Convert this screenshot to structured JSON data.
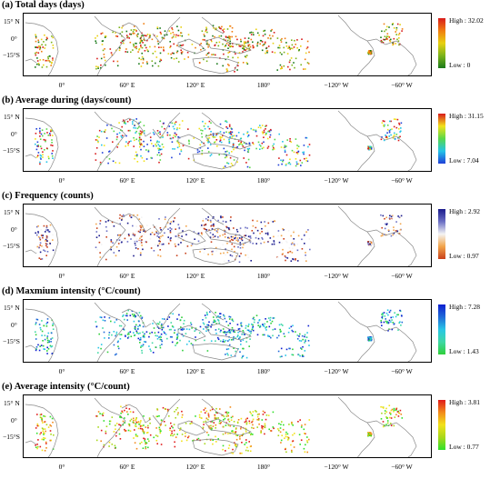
{
  "lat_ticks": [
    "15° N",
    "0°",
    "−15°S"
  ],
  "lon_ticks": [
    "0°",
    "60° E",
    "120° E",
    "180°",
    "−120° W",
    "−60° W"
  ],
  "panels": [
    {
      "title": "(a) Total days (days)",
      "high": "High : 32.02",
      "low": "Low : 0",
      "colors": [
        "#1a7a1a",
        "#7bb31a",
        "#e8d010",
        "#f07d10",
        "#d81b1b"
      ]
    },
    {
      "title": "(b) Average during (days/count)",
      "high": "High : 31.15",
      "low": "Low : 7.04",
      "colors": [
        "#1f3fd8",
        "#24c4e8",
        "#59d84a",
        "#f2e31a",
        "#d81b1b"
      ]
    },
    {
      "title": "(c) Frequency (counts)",
      "high": "High : 2.92",
      "low": "Low : 0.97",
      "colors": [
        "#c8401a",
        "#f2a44a",
        "#f4f4f4",
        "#6b6fc4",
        "#1a1a8c"
      ]
    },
    {
      "title": "(d) Maxmium intensity (°C/count)",
      "high": "High : 7.28",
      "low": "Low : 1.43",
      "colors": [
        "#2fcf3a",
        "#3fd8a4",
        "#28c6e6",
        "#1f6ad8",
        "#0d1fd0"
      ]
    },
    {
      "title": "(e) Average intensity (°C/count)",
      "high": "High : 3.81",
      "low": "Low : 0.77",
      "colors": [
        "#2fe02a",
        "#a8d81a",
        "#f2e21a",
        "#f28a1a",
        "#e01a1a"
      ]
    }
  ]
}
